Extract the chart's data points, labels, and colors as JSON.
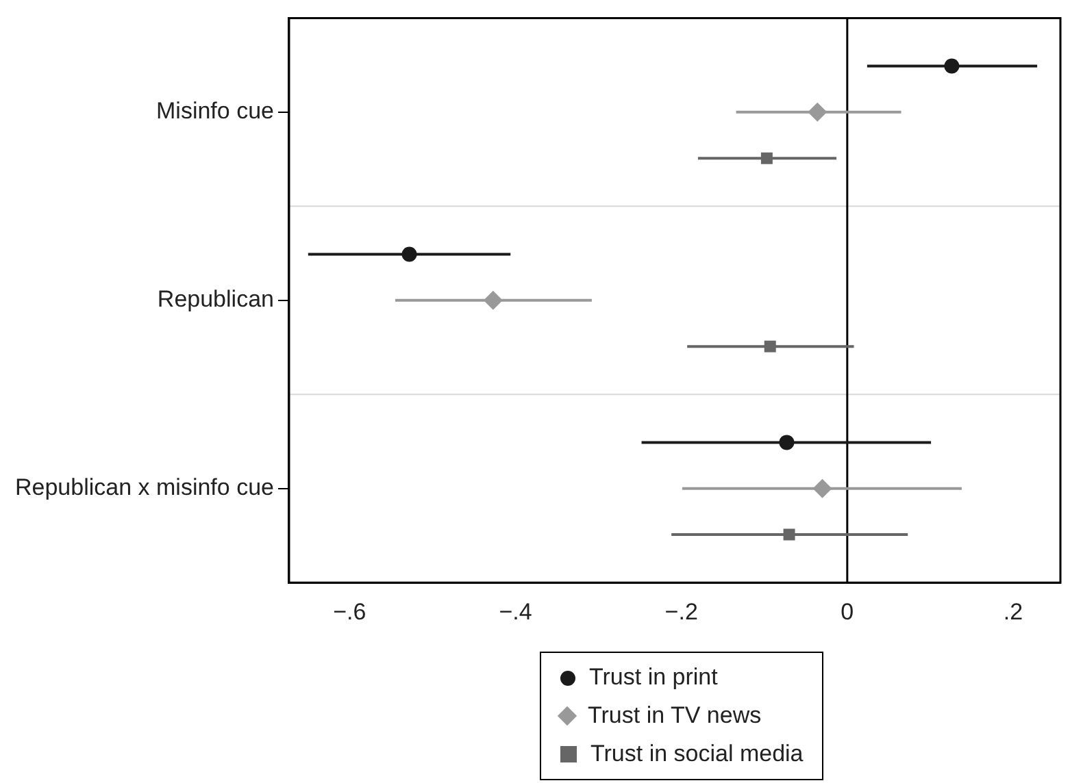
{
  "chart_data": {
    "type": "scatter",
    "orientation": "horizontal",
    "categories": [
      "Misinfo cue",
      "Republican",
      "Republican x misinfo cue"
    ],
    "series": [
      {
        "name": "Trust in print",
        "color": "#1a1a1a",
        "marker": "circle",
        "values": [
          0.126,
          -0.528,
          -0.073
        ],
        "errors": [
          [
            0.024,
            0.229
          ],
          [
            -0.65,
            -0.406
          ],
          [
            -0.248,
            0.101
          ]
        ]
      },
      {
        "name": "Trust in TV news",
        "color": "#999999",
        "marker": "diamond",
        "values": [
          -0.036,
          -0.427,
          -0.03
        ],
        "errors": [
          [
            -0.134,
            0.065
          ],
          [
            -0.545,
            -0.308
          ],
          [
            -0.199,
            0.138
          ]
        ]
      },
      {
        "name": "Trust in social media",
        "color": "#666666",
        "marker": "square",
        "values": [
          -0.097,
          -0.093,
          -0.07
        ],
        "errors": [
          [
            -0.18,
            -0.013
          ],
          [
            -0.193,
            0.008
          ],
          [
            -0.212,
            0.073
          ]
        ]
      }
    ],
    "xlim": [
      -0.673,
      0.257
    ],
    "xticks": [
      {
        "value": -0.6,
        "label": "−.6"
      },
      {
        "value": -0.4,
        "label": "−.4"
      },
      {
        "value": -0.2,
        "label": "−.2"
      },
      0,
      {
        "value": 0.2,
        "label": ".2"
      }
    ],
    "ref_lines": [
      {
        "axis": "x",
        "value": 0,
        "color": "#000000"
      }
    ],
    "grid": "y",
    "legend": "bottom"
  }
}
